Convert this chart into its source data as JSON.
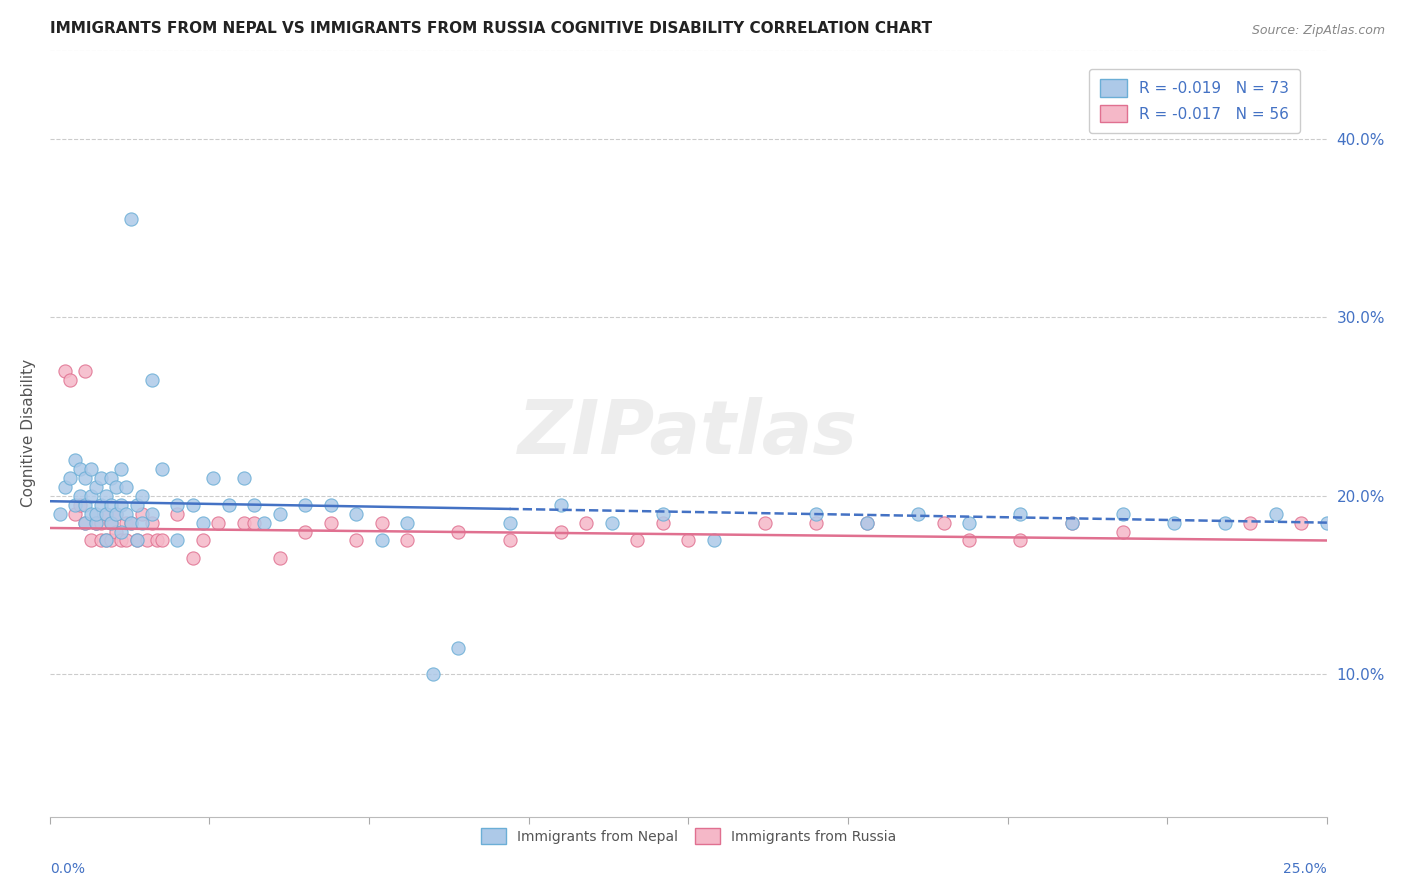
{
  "title": "IMMIGRANTS FROM NEPAL VS IMMIGRANTS FROM RUSSIA COGNITIVE DISABILITY CORRELATION CHART",
  "source": "Source: ZipAtlas.com",
  "ylabel": "Cognitive Disability",
  "right_yticks": [
    "10.0%",
    "20.0%",
    "30.0%",
    "40.0%"
  ],
  "right_ytick_vals": [
    0.1,
    0.2,
    0.3,
    0.4
  ],
  "xlim": [
    0.0,
    0.25
  ],
  "ylim": [
    0.02,
    0.45
  ],
  "nepal_R": -0.019,
  "nepal_N": 73,
  "russia_R": -0.017,
  "russia_N": 56,
  "nepal_color": "#adc9e8",
  "nepal_edge": "#6baed6",
  "russia_color": "#f5b8c8",
  "russia_edge": "#e07090",
  "nepal_line_color": "#4472c4",
  "russia_line_color": "#e07090",
  "watermark": "ZIPatlas",
  "nepal_x": [
    0.002,
    0.003,
    0.004,
    0.005,
    0.005,
    0.006,
    0.006,
    0.007,
    0.007,
    0.007,
    0.008,
    0.008,
    0.008,
    0.009,
    0.009,
    0.009,
    0.01,
    0.01,
    0.011,
    0.011,
    0.011,
    0.012,
    0.012,
    0.012,
    0.013,
    0.013,
    0.014,
    0.014,
    0.014,
    0.015,
    0.015,
    0.016,
    0.016,
    0.017,
    0.017,
    0.018,
    0.018,
    0.02,
    0.02,
    0.022,
    0.025,
    0.025,
    0.028,
    0.03,
    0.032,
    0.035,
    0.038,
    0.04,
    0.042,
    0.045,
    0.05,
    0.055,
    0.06,
    0.065,
    0.07,
    0.075,
    0.08,
    0.09,
    0.1,
    0.11,
    0.12,
    0.13,
    0.15,
    0.16,
    0.17,
    0.18,
    0.19,
    0.2,
    0.21,
    0.22,
    0.23,
    0.24,
    0.25
  ],
  "nepal_y": [
    0.19,
    0.205,
    0.21,
    0.195,
    0.22,
    0.2,
    0.215,
    0.185,
    0.195,
    0.21,
    0.19,
    0.2,
    0.215,
    0.185,
    0.19,
    0.205,
    0.195,
    0.21,
    0.175,
    0.19,
    0.2,
    0.185,
    0.195,
    0.21,
    0.19,
    0.205,
    0.18,
    0.195,
    0.215,
    0.19,
    0.205,
    0.185,
    0.355,
    0.195,
    0.175,
    0.185,
    0.2,
    0.265,
    0.19,
    0.215,
    0.195,
    0.175,
    0.195,
    0.185,
    0.21,
    0.195,
    0.21,
    0.195,
    0.185,
    0.19,
    0.195,
    0.195,
    0.19,
    0.175,
    0.185,
    0.1,
    0.115,
    0.185,
    0.195,
    0.185,
    0.19,
    0.175,
    0.19,
    0.185,
    0.19,
    0.185,
    0.19,
    0.185,
    0.19,
    0.185,
    0.185,
    0.19,
    0.185
  ],
  "russia_x": [
    0.003,
    0.004,
    0.005,
    0.006,
    0.007,
    0.007,
    0.008,
    0.009,
    0.009,
    0.01,
    0.01,
    0.011,
    0.011,
    0.012,
    0.012,
    0.013,
    0.013,
    0.014,
    0.015,
    0.015,
    0.016,
    0.017,
    0.018,
    0.019,
    0.02,
    0.021,
    0.022,
    0.025,
    0.028,
    0.03,
    0.033,
    0.038,
    0.04,
    0.045,
    0.05,
    0.055,
    0.06,
    0.065,
    0.07,
    0.08,
    0.09,
    0.1,
    0.105,
    0.115,
    0.12,
    0.125,
    0.14,
    0.15,
    0.16,
    0.175,
    0.18,
    0.19,
    0.2,
    0.21,
    0.235,
    0.245
  ],
  "russia_y": [
    0.27,
    0.265,
    0.19,
    0.195,
    0.185,
    0.27,
    0.175,
    0.185,
    0.185,
    0.175,
    0.185,
    0.175,
    0.19,
    0.175,
    0.185,
    0.19,
    0.18,
    0.175,
    0.185,
    0.175,
    0.185,
    0.175,
    0.19,
    0.175,
    0.185,
    0.175,
    0.175,
    0.19,
    0.165,
    0.175,
    0.185,
    0.185,
    0.185,
    0.165,
    0.18,
    0.185,
    0.175,
    0.185,
    0.175,
    0.18,
    0.175,
    0.18,
    0.185,
    0.175,
    0.185,
    0.175,
    0.185,
    0.185,
    0.185,
    0.185,
    0.175,
    0.175,
    0.185,
    0.18,
    0.185,
    0.185
  ],
  "nepal_trendline_x": [
    0.0,
    0.25
  ],
  "nepal_trendline_y": [
    0.195,
    0.185
  ],
  "russia_trendline_x": [
    0.0,
    0.25
  ],
  "russia_trendline_y": [
    0.18,
    0.175
  ]
}
